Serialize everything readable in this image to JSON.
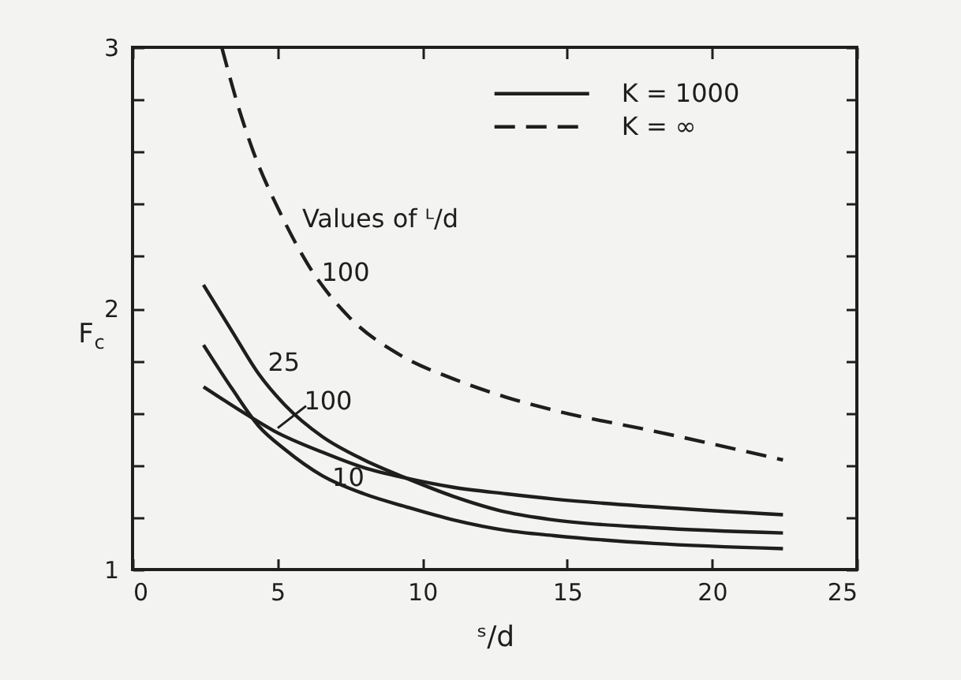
{
  "chart_data": {
    "type": "line",
    "xlabel": "ˢ/d",
    "ylabel": "F$_{c}$",
    "xlim": [
      0,
      25
    ],
    "ylim": [
      1,
      3
    ],
    "xticks": [
      0,
      5,
      10,
      15,
      20,
      25
    ],
    "yticks": [
      1,
      {
        "value": 1.2,
        "label": null
      },
      {
        "value": 1.4,
        "label": null
      },
      {
        "value": 1.6,
        "label": null
      },
      {
        "value": 1.8,
        "label": null
      },
      2,
      {
        "value": 2.2,
        "label": null
      },
      {
        "value": 2.4,
        "label": null
      },
      {
        "value": 2.6,
        "label": null
      },
      {
        "value": 2.8,
        "label": null
      },
      3
    ],
    "legend": "top right",
    "series": [
      {
        "name": "K = 1000",
        "color": "#1e1e1e",
        "line_style": "solid",
        "x": [
          2.45,
          3.45,
          4.35,
          5.26,
          6.54,
          7.99,
          9.45,
          11.08,
          12.9,
          14.54,
          18.0,
          22.45
        ],
        "values": [
          1.86,
          1.69,
          1.55,
          1.46,
          1.36,
          1.29,
          1.24,
          1.19,
          1.15,
          1.13,
          1.1,
          1.08
        ]
      },
      {
        "color": "#1e1e1e",
        "line_style": "solid",
        "x": [
          2.45,
          3.45,
          4.35,
          5.26,
          6.54,
          7.99,
          9.45,
          11.08,
          12.9,
          14.54,
          18.0,
          22.45
        ],
        "values": [
          2.09,
          1.91,
          1.75,
          1.63,
          1.51,
          1.42,
          1.35,
          1.28,
          1.22,
          1.19,
          1.16,
          1.14
        ]
      },
      {
        "color": "#1e1e1e",
        "line_style": "solid",
        "x": [
          2.45,
          3.99,
          4.9,
          6.54,
          7.99,
          9.45,
          11.08,
          12.9,
          14.54,
          18.0,
          22.45
        ],
        "values": [
          1.7,
          1.59,
          1.53,
          1.45,
          1.39,
          1.35,
          1.315,
          1.29,
          1.27,
          1.24,
          1.21
        ]
      },
      {
        "name": "K = ∞",
        "color": "#1e1e1e",
        "line_style": "dashed",
        "x": [
          3.08,
          3.63,
          4.17,
          5.08,
          6.1,
          7.45,
          9.26,
          11.08,
          12.9,
          14.54,
          18.0,
          22.45
        ],
        "values": [
          3.0,
          2.78,
          2.6,
          2.37,
          2.16,
          1.97,
          1.82,
          1.73,
          1.66,
          1.61,
          1.53,
          1.42
        ]
      }
    ],
    "annotations": [
      {
        "text": "100",
        "x": 6.1,
        "y": 2.16
      },
      {
        "text": "25",
        "x": 4.35,
        "y": 1.75
      },
      {
        "text": "100",
        "x": 4.9,
        "y": 1.53
      },
      {
        "text": "10",
        "x": 7.99,
        "y": 1.29
      },
      "Values of ᴸ/d"
    ]
  }
}
